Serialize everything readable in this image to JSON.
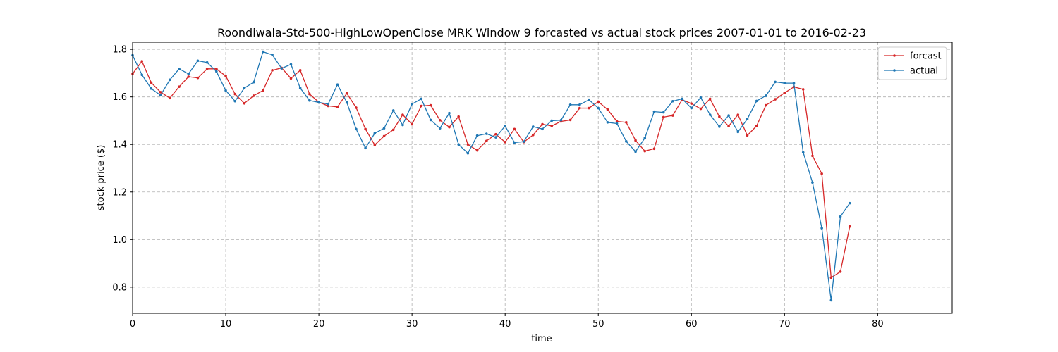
{
  "chart_data": {
    "type": "line",
    "title": "Roondiwala-Std-500-HighLowOpenClose MRK Window 9 forcasted vs actual stock prices 2007-01-01 to 2016-02-23",
    "xlabel": "time",
    "ylabel": "stock price ($)",
    "xlim": [
      0,
      88
    ],
    "ylim": [
      0.69,
      1.83
    ],
    "xticks": [
      0,
      10,
      20,
      30,
      40,
      50,
      60,
      70,
      80
    ],
    "yticks": [
      0.8,
      1.0,
      1.2,
      1.4,
      1.6,
      1.8
    ],
    "grid": true,
    "legend_position": "top-right",
    "series": [
      {
        "name": "forcast",
        "color": "#d62728",
        "x": [
          0,
          1,
          2,
          3,
          4,
          5,
          6,
          7,
          8,
          9,
          10,
          11,
          12,
          13,
          14,
          15,
          16,
          17,
          18,
          19,
          20,
          21,
          22,
          23,
          24,
          25,
          26,
          27,
          28,
          29,
          30,
          31,
          32,
          33,
          34,
          35,
          36,
          37,
          38,
          39,
          40,
          41,
          42,
          43,
          44,
          45,
          46,
          47,
          48,
          49,
          50,
          51,
          52,
          53,
          54,
          55,
          56,
          57,
          58,
          59,
          60,
          61,
          62,
          63,
          64,
          65,
          66,
          67,
          68,
          69,
          70,
          71,
          72,
          73,
          74,
          75,
          76,
          77
        ],
        "values": [
          1.697,
          1.75,
          1.66,
          1.62,
          1.595,
          1.643,
          1.685,
          1.68,
          1.718,
          1.718,
          1.688,
          1.612,
          1.573,
          1.605,
          1.627,
          1.712,
          1.722,
          1.678,
          1.712,
          1.612,
          1.578,
          1.562,
          1.558,
          1.615,
          1.555,
          1.465,
          1.398,
          1.435,
          1.462,
          1.525,
          1.485,
          1.562,
          1.565,
          1.502,
          1.473,
          1.517,
          1.4,
          1.375,
          1.415,
          1.443,
          1.41,
          1.465,
          1.41,
          1.44,
          1.485,
          1.478,
          1.497,
          1.503,
          1.553,
          1.553,
          1.58,
          1.547,
          1.497,
          1.493,
          1.417,
          1.372,
          1.382,
          1.515,
          1.522,
          1.588,
          1.572,
          1.55,
          1.592,
          1.517,
          1.477,
          1.525,
          1.438,
          1.478,
          1.565,
          1.59,
          1.617,
          1.642,
          1.632,
          1.352,
          1.277,
          0.84,
          0.865,
          1.055
        ]
      },
      {
        "name": "actual",
        "color": "#1f77b4",
        "x": [
          0,
          1,
          2,
          3,
          4,
          5,
          6,
          7,
          8,
          9,
          10,
          11,
          12,
          13,
          14,
          15,
          16,
          17,
          18,
          19,
          20,
          21,
          22,
          23,
          24,
          25,
          26,
          27,
          28,
          29,
          30,
          31,
          32,
          33,
          34,
          35,
          36,
          37,
          38,
          39,
          40,
          41,
          42,
          43,
          44,
          45,
          46,
          47,
          48,
          49,
          50,
          51,
          52,
          53,
          54,
          55,
          56,
          57,
          58,
          59,
          60,
          61,
          62,
          63,
          64,
          65,
          66,
          67,
          68,
          69,
          70,
          71,
          72,
          73,
          74,
          75,
          76,
          77
        ],
        "values": [
          1.775,
          1.693,
          1.635,
          1.607,
          1.672,
          1.718,
          1.697,
          1.752,
          1.745,
          1.707,
          1.627,
          1.582,
          1.637,
          1.662,
          1.79,
          1.777,
          1.72,
          1.737,
          1.637,
          1.585,
          1.577,
          1.57,
          1.652,
          1.577,
          1.465,
          1.385,
          1.447,
          1.468,
          1.543,
          1.482,
          1.57,
          1.592,
          1.503,
          1.468,
          1.532,
          1.4,
          1.363,
          1.437,
          1.445,
          1.43,
          1.478,
          1.408,
          1.412,
          1.475,
          1.465,
          1.5,
          1.502,
          1.567,
          1.567,
          1.588,
          1.553,
          1.493,
          1.488,
          1.413,
          1.37,
          1.427,
          1.538,
          1.535,
          1.582,
          1.592,
          1.553,
          1.597,
          1.525,
          1.475,
          1.522,
          1.453,
          1.507,
          1.583,
          1.605,
          1.663,
          1.658,
          1.658,
          1.367,
          1.24,
          1.048,
          0.745,
          1.097,
          1.153
        ]
      }
    ]
  }
}
